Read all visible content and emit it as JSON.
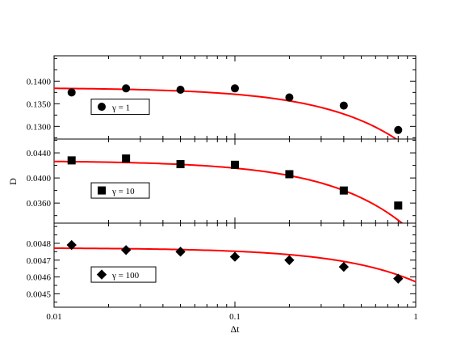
{
  "chart_data": {
    "type": "scatter",
    "xlabel": "Δt",
    "ylabel": "D",
    "xscale": "log",
    "xlim": [
      0.01,
      1
    ],
    "x_ticks": [
      {
        "value": 0.01,
        "label": "0.01"
      },
      {
        "value": 0.1,
        "label": "0.1"
      },
      {
        "value": 1,
        "label": "1"
      }
    ],
    "grid": false,
    "fit_line_color": "#ff0000",
    "marker_color": "#000000",
    "panels": [
      {
        "legend": "γ = 1",
        "legend_placement": "middle-left",
        "marker": "circle",
        "ylim": [
          0.1272,
          0.1456
        ],
        "y_ticks": [
          {
            "value": 0.13,
            "label": "0.1300"
          },
          {
            "value": 0.135,
            "label": "0.1350"
          },
          {
            "value": 0.14,
            "label": "0.1400"
          }
        ],
        "x": [
          0.0125,
          0.025,
          0.05,
          0.1,
          0.2,
          0.4,
          0.8
        ],
        "y": [
          0.1375,
          0.1384,
          0.1381,
          0.1384,
          0.1364,
          0.1346,
          0.1292
        ],
        "fit": {
          "a": 0.13855,
          "b": 0.01455
        }
      },
      {
        "legend": "γ = 10",
        "legend_placement": "middle-left",
        "marker": "square",
        "ylim": [
          0.0328,
          0.0462
        ],
        "y_ticks": [
          {
            "value": 0.036,
            "label": "0.0360"
          },
          {
            "value": 0.04,
            "label": "0.0400"
          },
          {
            "value": 0.044,
            "label": "0.0440"
          }
        ],
        "x": [
          0.0125,
          0.025,
          0.05,
          0.1,
          0.2,
          0.4,
          0.8
        ],
        "y": [
          0.0428,
          0.0431,
          0.0422,
          0.0421,
          0.0406,
          0.038,
          0.0356
        ],
        "fit": {
          "a": 0.04275,
          "b": 0.01185
        }
      },
      {
        "legend": "γ = 100",
        "legend_placement": "middle-left",
        "marker": "diamond",
        "ylim": [
          0.00442,
          0.00492
        ],
        "y_ticks": [
          {
            "value": 0.0045,
            "label": "0.0045"
          },
          {
            "value": 0.0046,
            "label": "0.0046"
          },
          {
            "value": 0.0047,
            "label": "0.0047"
          },
          {
            "value": 0.0048,
            "label": "0.0048"
          }
        ],
        "x": [
          0.0125,
          0.025,
          0.05,
          0.1,
          0.2,
          0.4,
          0.8
        ],
        "y": [
          0.00479,
          0.00476,
          0.00475,
          0.00472,
          0.0047,
          0.00466,
          0.00459
        ],
        "fit": {
          "a": 0.004773,
          "b": 0.000202
        }
      }
    ]
  }
}
